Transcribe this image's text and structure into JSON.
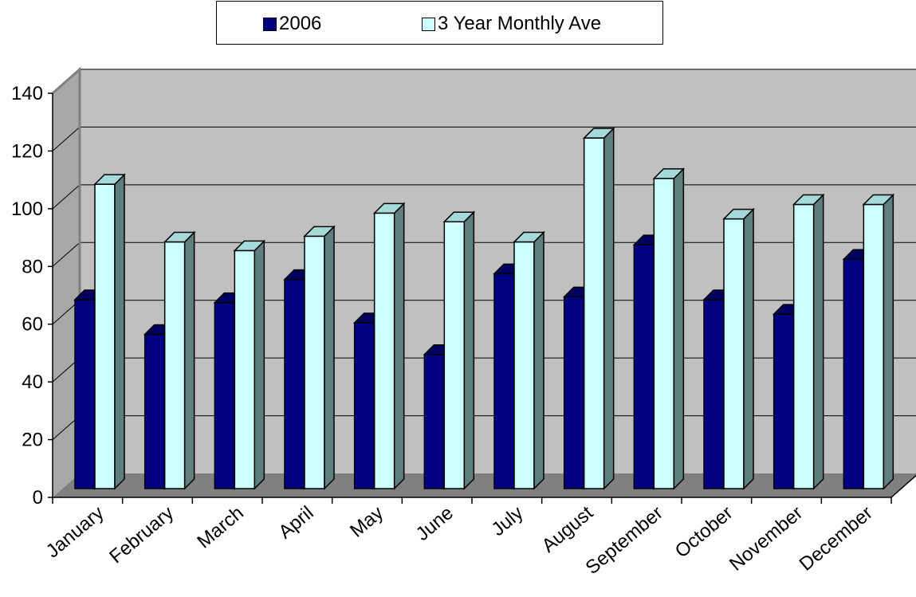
{
  "chart_data": {
    "type": "bar",
    "title": "",
    "xlabel": "",
    "ylabel": "",
    "ylim": [
      0,
      140
    ],
    "yticks": [
      0,
      20,
      40,
      60,
      80,
      100,
      120,
      140
    ],
    "grid": true,
    "legend_position": "top",
    "categories": [
      "January",
      "February",
      "March",
      "April",
      "May",
      "June",
      "July",
      "August",
      "September",
      "October",
      "November",
      "December"
    ],
    "series": [
      {
        "name": "2006",
        "color": "#000080",
        "values": [
          66,
          54,
          65,
          73,
          58,
          47,
          75,
          67,
          85,
          66,
          61,
          80
        ]
      },
      {
        "name": "3 Year Monthly Ave",
        "color": "#ccffff",
        "values": [
          106,
          86,
          83,
          88,
          96,
          93,
          86,
          122,
          108,
          94,
          99,
          99
        ]
      }
    ]
  }
}
